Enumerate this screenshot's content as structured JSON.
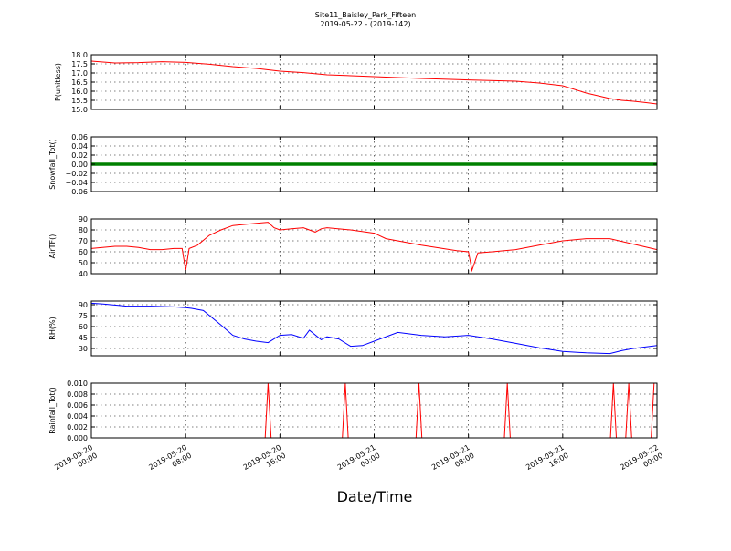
{
  "figure": {
    "title_line1": "Site11_Baisley_Park_Fifteen",
    "title_line2": "2019-05-22 - (2019-142)",
    "xlabel": "Date/Time"
  },
  "chart_data": [
    {
      "type": "line",
      "ylabel": "P(unitless)",
      "ylim": [
        15.0,
        18.0
      ],
      "yticks": [
        "15.0",
        "15.5",
        "16.0",
        "16.5",
        "17.0",
        "17.5",
        "18.0"
      ],
      "ytick_values": [
        15.0,
        15.5,
        16.0,
        16.5,
        17.0,
        17.5,
        18.0
      ],
      "color": "#ff0000",
      "grid": true,
      "x_hours": [
        0,
        2,
        4,
        6,
        8,
        10,
        12,
        14,
        16,
        18,
        20,
        24,
        28,
        32,
        36,
        38,
        40,
        42,
        44,
        45,
        46,
        47,
        48
      ],
      "values": [
        17.65,
        17.55,
        17.57,
        17.62,
        17.58,
        17.48,
        17.35,
        17.25,
        17.1,
        17.02,
        16.9,
        16.8,
        16.7,
        16.62,
        16.55,
        16.45,
        16.3,
        15.9,
        15.6,
        15.5,
        15.45,
        15.38,
        15.3
      ]
    },
    {
      "type": "line",
      "ylabel": "Snowfall_Tot()",
      "ylim": [
        -0.06,
        0.06
      ],
      "yticks": [
        "−0.06",
        "−0.04",
        "−0.02",
        "0.00",
        "0.02",
        "0.04",
        "0.06"
      ],
      "ytick_values": [
        -0.06,
        -0.04,
        -0.02,
        0.0,
        0.02,
        0.04,
        0.06
      ],
      "color": "#008000",
      "grid": true,
      "x_hours": [
        0,
        48
      ],
      "values": [
        0.0,
        0.0
      ]
    },
    {
      "type": "line",
      "ylabel": "AirTF()",
      "ylim": [
        40,
        90
      ],
      "yticks": [
        "40",
        "50",
        "60",
        "70",
        "80",
        "90"
      ],
      "ytick_values": [
        40,
        50,
        60,
        70,
        80,
        90
      ],
      "color": "#ff0000",
      "grid": true,
      "x_hours": [
        0,
        2,
        3,
        4,
        5,
        6,
        7,
        7.7,
        8,
        8.3,
        9,
        10,
        11,
        12,
        14,
        15,
        15.5,
        16,
        17,
        18,
        19,
        19.5,
        20,
        22,
        24,
        25,
        28,
        31,
        32,
        32.3,
        32.8,
        34,
        36,
        38,
        40,
        42,
        44,
        48
      ],
      "values": [
        63,
        65,
        65,
        64,
        62,
        62,
        63,
        63,
        43,
        63,
        66,
        75,
        80,
        84,
        86,
        87,
        82,
        80,
        81,
        82,
        78,
        81,
        82,
        80,
        77,
        72,
        66,
        61,
        60,
        43,
        59,
        60,
        62,
        66,
        70,
        72,
        72,
        62
      ]
    },
    {
      "type": "line",
      "ylabel": "RH(%)",
      "ylim": [
        20,
        95
      ],
      "yticks": [
        "30",
        "45",
        "60",
        "75",
        "90"
      ],
      "ytick_values": [
        30,
        45,
        60,
        75,
        90
      ],
      "color": "#0000ff",
      "grid": true,
      "x_hours": [
        0,
        1,
        3,
        5,
        7,
        8,
        8.5,
        9.5,
        11,
        12,
        13,
        14,
        15,
        16,
        17,
        18,
        18.5,
        19.5,
        20,
        21,
        22,
        23,
        24,
        26,
        28,
        30,
        32,
        34,
        36,
        38,
        40,
        42,
        44,
        45,
        46,
        48
      ],
      "values": [
        92,
        91,
        88,
        88,
        87,
        86,
        85,
        82,
        62,
        48,
        43,
        40,
        38,
        48,
        49,
        44,
        55,
        42,
        46,
        43,
        33,
        34,
        40,
        52,
        48,
        46,
        48,
        43,
        37,
        31,
        26,
        24,
        23,
        27,
        30,
        34
      ]
    },
    {
      "type": "line",
      "ylabel": "Rainfall_Tot()",
      "ylim": [
        0.0,
        0.01
      ],
      "yticks": [
        "0.000",
        "0.002",
        "0.004",
        "0.006",
        "0.008",
        "0.010"
      ],
      "ytick_values": [
        0.0,
        0.002,
        0.004,
        0.006,
        0.008,
        0.01
      ],
      "color": "#ff0000",
      "grid": true,
      "x_hours": [
        0,
        14.75,
        15,
        15.25,
        21.3,
        21.55,
        21.8,
        27.55,
        27.8,
        28.05,
        35.05,
        35.3,
        35.55,
        44.05,
        44.3,
        44.55,
        45.35,
        45.6,
        45.85,
        47.5,
        47.75,
        48
      ],
      "values": [
        0,
        0,
        0.01,
        0,
        0,
        0.01,
        0,
        0,
        0.01,
        0,
        0,
        0.01,
        0,
        0,
        0.01,
        0,
        0,
        0.01,
        0,
        0,
        0.01,
        0.01
      ]
    }
  ],
  "x_axis": {
    "range_hours": [
      0,
      48
    ],
    "tick_hours": [
      0,
      8,
      16,
      24,
      32,
      40,
      48
    ],
    "tick_labels": [
      [
        "2019-05-20",
        "00:00"
      ],
      [
        "2019-05-20",
        "08:00"
      ],
      [
        "2019-05-20",
        "16:00"
      ],
      [
        "2019-05-21",
        "00:00"
      ],
      [
        "2019-05-21",
        "08:00"
      ],
      [
        "2019-05-21",
        "16:00"
      ],
      [
        "2019-05-22",
        "00:00"
      ]
    ]
  }
}
